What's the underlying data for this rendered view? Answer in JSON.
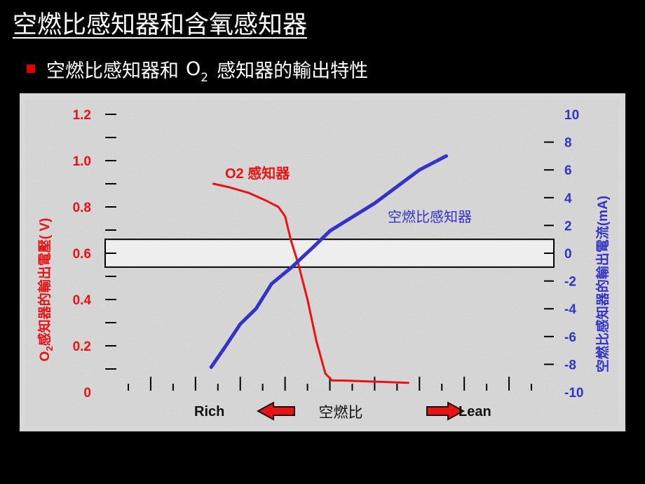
{
  "slide": {
    "title": "空燃比感知器和含氧感知器",
    "bullet": {
      "prefix": "空燃比感知器和",
      "formula_main": "O",
      "formula_sub": "2",
      "suffix": "感知器的輸出特性"
    }
  },
  "colors": {
    "background": "#000000",
    "panel": "#d8d8d8",
    "o2_series": "#ee1111",
    "af_series": "#3333cc",
    "arrow_fill": "#ee1111",
    "text_dark": "#111111"
  },
  "chart_data": {
    "type": "line",
    "title": "",
    "xlabel": "空燃比",
    "x_left_label": "Rich",
    "x_right_label": "Lean",
    "xlim": [
      0,
      18
    ],
    "x_tick_count": 19,
    "y_left": {
      "label_main": "O",
      "label_sub": "2",
      "label_rest": "感知器的輸出電壓( V)",
      "ylim": [
        0,
        1.2
      ],
      "ticks": [
        "0",
        "0.2",
        "0.4",
        "0.6",
        "0.8",
        "1.0",
        "1.2"
      ],
      "minor_step": 0.1
    },
    "y_right": {
      "label": "空燃比感知器的輸出電流(mA)",
      "ylim": [
        -10,
        10
      ],
      "ticks": [
        "-10",
        "-8",
        "-6",
        "-4",
        "-2",
        "0",
        "2",
        "4",
        "6",
        "8",
        "10"
      ]
    },
    "band": {
      "axis": "left",
      "y_min": 0.54,
      "y_max": 0.66
    },
    "series": [
      {
        "name": "O2 感知器",
        "axis": "left",
        "x": [
          3.8,
          4.5,
          5.4,
          6.2,
          6.7,
          7.0,
          7.25,
          7.6,
          8.0,
          8.4,
          8.8,
          9.1,
          9.6,
          12.5
        ],
        "y": [
          0.9,
          0.885,
          0.86,
          0.825,
          0.8,
          0.76,
          0.66,
          0.55,
          0.4,
          0.22,
          0.08,
          0.05,
          0.05,
          0.04
        ]
      },
      {
        "name": "空燃比感知器",
        "axis": "right",
        "x": [
          3.7,
          4.3,
          5.0,
          5.7,
          6.4,
          7.3,
          8.3,
          9.0,
          10.0,
          11.0,
          12.0,
          13.0,
          14.2
        ],
        "y": [
          -8.2,
          -6.8,
          -5.1,
          -4.0,
          -2.2,
          -1.0,
          0.5,
          1.6,
          2.6,
          3.6,
          4.8,
          6.0,
          7.0
        ]
      }
    ]
  }
}
